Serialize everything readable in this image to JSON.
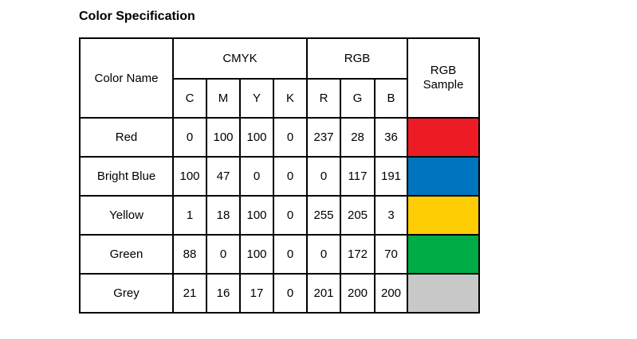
{
  "title": "Color Specification",
  "headers": {
    "color_name": "Color Name",
    "cmyk": "CMYK",
    "rgb": "RGB",
    "rgb_sample_line1": "RGB",
    "rgb_sample_line2": "Sample",
    "c": "C",
    "m": "M",
    "y": "Y",
    "k": "K",
    "r": "R",
    "g": "G",
    "b": "B"
  },
  "rows": [
    {
      "name": "Red",
      "c": "0",
      "m": "100",
      "y": "100",
      "k": "0",
      "r": "237",
      "g": "28",
      "b": "36",
      "sample": "#ED1C24"
    },
    {
      "name": "Bright Blue",
      "c": "100",
      "m": "47",
      "y": "0",
      "k": "0",
      "r": "0",
      "g": "117",
      "b": "191",
      "sample": "#0075BF"
    },
    {
      "name": "Yellow",
      "c": "1",
      "m": "18",
      "y": "100",
      "k": "0",
      "r": "255",
      "g": "205",
      "b": "3",
      "sample": "#FFCD03"
    },
    {
      "name": "Green",
      "c": "88",
      "m": "0",
      "y": "100",
      "k": "0",
      "r": "0",
      "g": "172",
      "b": "70",
      "sample": "#00AC46"
    },
    {
      "name": "Grey",
      "c": "21",
      "m": "16",
      "y": "17",
      "k": "0",
      "r": "201",
      "g": "200",
      "b": "200",
      "sample": "#C9C8C8"
    }
  ]
}
